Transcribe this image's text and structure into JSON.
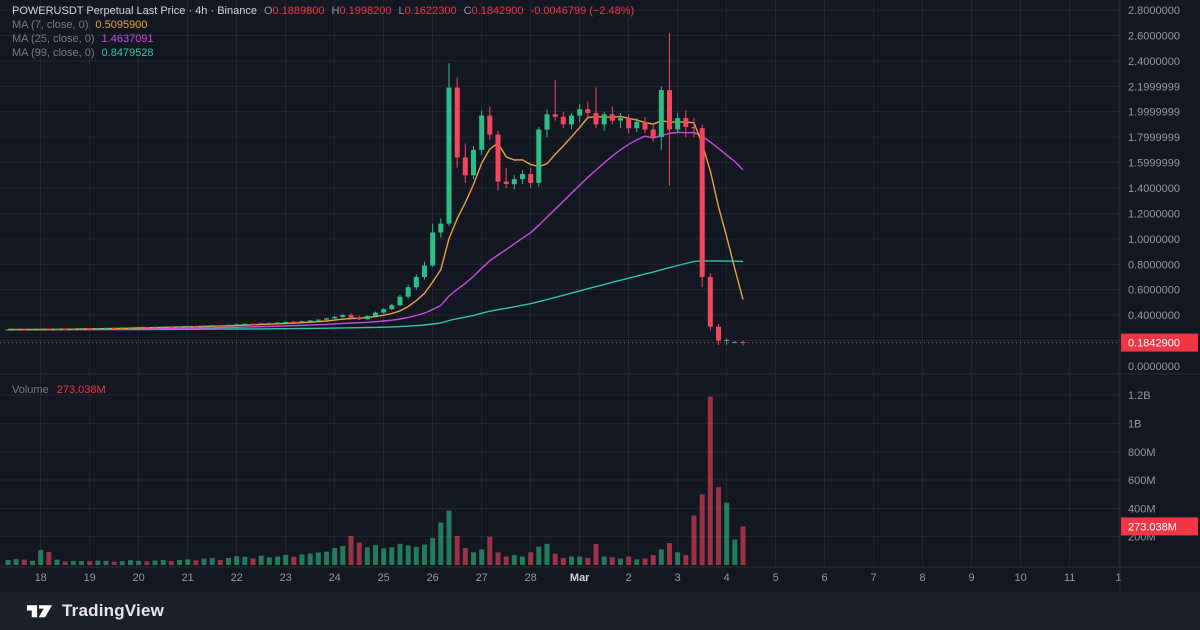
{
  "header": {
    "title": "POWERUSDT Perpetual Last Price · 4h · Binance",
    "ohlc": [
      {
        "k": "O",
        "v": "0.1889800"
      },
      {
        "k": "H",
        "v": "0.1998200"
      },
      {
        "k": "L",
        "v": "0.1622300"
      },
      {
        "k": "C",
        "v": "0.1842900"
      }
    ],
    "change": "-0.0046799 (−2.48%)"
  },
  "volume_legend": {
    "label": "Volume",
    "value": "273.038M"
  },
  "footer": {
    "brand": "TradingView"
  },
  "colors": {
    "background": "#131722",
    "grid": "rgba(255,255,255,0.06)",
    "divider": "#2a2e39",
    "axis_text": "#9598a1",
    "title_text": "#d1d4dc",
    "green": "#2ebd85",
    "red": "#f23645",
    "candle_red": "#f6465d",
    "ma7": "#e8a33d",
    "ma25": "#cb4be0",
    "ma99": "#2ec5a8",
    "badge_text": "#ffffff",
    "footer_bg": "#1c202b"
  },
  "chart_data": {
    "type": "candlestick",
    "symbol": "POWERUSDT Perpetual",
    "interval": "4h",
    "exchange": "Binance",
    "legend_ohlc": {
      "open": 0.18898,
      "high": 0.19982,
      "low": 0.16223,
      "close": 0.18429,
      "change": -0.0046799,
      "change_pct": -2.48
    },
    "ma_legend": [
      {
        "label": "MA (7, close, 0)",
        "value": "0.5095900",
        "color": "#e8a33d"
      },
      {
        "label": "MA (25, close, 0)",
        "value": "1.4637091",
        "color": "#cb4be0"
      },
      {
        "label": "MA (99, close, 0)",
        "value": "0.8479528",
        "color": "#2ec5a8"
      }
    ],
    "ma_periods": [
      7,
      25,
      99
    ],
    "price_axis": {
      "min": 0,
      "max": 2.8,
      "labels": [
        {
          "t": "2.8000000",
          "p": 2.8
        },
        {
          "t": "2.6000000",
          "p": 2.6
        },
        {
          "t": "2.4000000",
          "p": 2.4
        },
        {
          "t": "2.1999999",
          "p": 2.2
        },
        {
          "t": "1.9999999",
          "p": 2.0
        },
        {
          "t": "1.7999999",
          "p": 1.8
        },
        {
          "t": "1.5999999",
          "p": 1.6
        },
        {
          "t": "1.4000000",
          "p": 1.4
        },
        {
          "t": "1.2000000",
          "p": 1.2
        },
        {
          "t": "1.0000000",
          "p": 1.0
        },
        {
          "t": "0.8000000",
          "p": 0.8
        },
        {
          "t": "0.6000000",
          "p": 0.6
        },
        {
          "t": "0.4000000",
          "p": 0.4
        },
        {
          "t": "0.0000000",
          "p": 0.0
        }
      ]
    },
    "volume_axis": {
      "labels": [
        {
          "t": "1.2B",
          "v": 1200
        },
        {
          "t": "1B",
          "v": 1000
        },
        {
          "t": "800M",
          "v": 800
        },
        {
          "t": "600M",
          "v": 600
        },
        {
          "t": "400M",
          "v": 400
        },
        {
          "t": "200M",
          "v": 200
        }
      ]
    },
    "time_axis": {
      "labels": [
        {
          "l": "18",
          "i": 4
        },
        {
          "l": "19",
          "i": 10
        },
        {
          "l": "20",
          "i": 16
        },
        {
          "l": "21",
          "i": 22
        },
        {
          "l": "22",
          "i": 28
        },
        {
          "l": "23",
          "i": 34
        },
        {
          "l": "24",
          "i": 40
        },
        {
          "l": "25",
          "i": 46
        },
        {
          "l": "26",
          "i": 52
        },
        {
          "l": "27",
          "i": 58
        },
        {
          "l": "28",
          "i": 64
        },
        {
          "l": "Mar",
          "i": 70,
          "s": true
        },
        {
          "l": "2",
          "i": 76
        },
        {
          "l": "3",
          "i": 82
        },
        {
          "l": "4",
          "i": 88
        },
        {
          "l": "5",
          "i": 94
        },
        {
          "l": "6",
          "i": 100
        },
        {
          "l": "7",
          "i": 106
        },
        {
          "l": "8",
          "i": 112
        },
        {
          "l": "9",
          "i": 118
        },
        {
          "l": "10",
          "i": 124
        },
        {
          "l": "11",
          "i": 130
        },
        {
          "l": "1",
          "i": 136
        }
      ]
    },
    "last_price": {
      "value": 0.18429,
      "label": "0.1842900"
    },
    "last_volume": {
      "value": 273.038,
      "label": "273.038M"
    },
    "candles_format": [
      "open",
      "high",
      "low",
      "close",
      "volume_millions"
    ],
    "candles": [
      [
        0.284,
        0.289,
        0.281,
        0.286,
        35
      ],
      [
        0.286,
        0.291,
        0.283,
        0.288,
        42
      ],
      [
        0.288,
        0.29,
        0.282,
        0.284,
        38
      ],
      [
        0.284,
        0.288,
        0.28,
        0.287,
        30
      ],
      [
        0.287,
        0.295,
        0.285,
        0.292,
        106
      ],
      [
        0.292,
        0.296,
        0.286,
        0.288,
        92
      ],
      [
        0.288,
        0.293,
        0.285,
        0.291,
        38
      ],
      [
        0.291,
        0.294,
        0.287,
        0.289,
        25
      ],
      [
        0.289,
        0.295,
        0.288,
        0.293,
        30
      ],
      [
        0.293,
        0.298,
        0.29,
        0.295,
        28
      ],
      [
        0.295,
        0.299,
        0.291,
        0.293,
        26
      ],
      [
        0.293,
        0.3,
        0.292,
        0.297,
        31
      ],
      [
        0.297,
        0.302,
        0.294,
        0.299,
        29
      ],
      [
        0.299,
        0.303,
        0.295,
        0.297,
        24
      ],
      [
        0.297,
        0.304,
        0.296,
        0.301,
        27
      ],
      [
        0.301,
        0.306,
        0.298,
        0.303,
        33
      ],
      [
        0.303,
        0.308,
        0.299,
        0.305,
        30
      ],
      [
        0.305,
        0.309,
        0.301,
        0.303,
        26
      ],
      [
        0.303,
        0.31,
        0.302,
        0.307,
        32
      ],
      [
        0.307,
        0.312,
        0.304,
        0.309,
        35
      ],
      [
        0.309,
        0.313,
        0.305,
        0.307,
        28
      ],
      [
        0.307,
        0.314,
        0.306,
        0.311,
        36
      ],
      [
        0.311,
        0.317,
        0.308,
        0.314,
        40
      ],
      [
        0.314,
        0.319,
        0.31,
        0.312,
        33
      ],
      [
        0.312,
        0.32,
        0.311,
        0.317,
        45
      ],
      [
        0.317,
        0.323,
        0.313,
        0.32,
        48
      ],
      [
        0.32,
        0.325,
        0.316,
        0.318,
        36
      ],
      [
        0.318,
        0.326,
        0.317,
        0.323,
        50
      ],
      [
        0.323,
        0.331,
        0.32,
        0.328,
        62
      ],
      [
        0.328,
        0.334,
        0.324,
        0.331,
        58
      ],
      [
        0.331,
        0.336,
        0.326,
        0.329,
        47
      ],
      [
        0.329,
        0.338,
        0.328,
        0.335,
        66
      ],
      [
        0.335,
        0.341,
        0.33,
        0.337,
        54
      ],
      [
        0.337,
        0.344,
        0.333,
        0.341,
        60
      ],
      [
        0.341,
        0.35,
        0.338,
        0.347,
        72
      ],
      [
        0.347,
        0.355,
        0.342,
        0.344,
        58
      ],
      [
        0.344,
        0.356,
        0.343,
        0.352,
        75
      ],
      [
        0.352,
        0.362,
        0.348,
        0.358,
        82
      ],
      [
        0.358,
        0.368,
        0.353,
        0.364,
        88
      ],
      [
        0.364,
        0.378,
        0.36,
        0.374,
        95
      ],
      [
        0.374,
        0.392,
        0.37,
        0.386,
        120
      ],
      [
        0.386,
        0.408,
        0.38,
        0.401,
        135
      ],
      [
        0.401,
        0.415,
        0.372,
        0.381,
        205
      ],
      [
        0.381,
        0.396,
        0.36,
        0.368,
        160
      ],
      [
        0.368,
        0.399,
        0.364,
        0.393,
        125
      ],
      [
        0.393,
        0.428,
        0.388,
        0.42,
        140
      ],
      [
        0.42,
        0.455,
        0.41,
        0.447,
        118
      ],
      [
        0.447,
        0.49,
        0.438,
        0.478,
        125
      ],
      [
        0.478,
        0.56,
        0.47,
        0.545,
        150
      ],
      [
        0.545,
        0.64,
        0.53,
        0.62,
        138
      ],
      [
        0.62,
        0.72,
        0.6,
        0.7,
        128
      ],
      [
        0.7,
        0.82,
        0.68,
        0.79,
        145
      ],
      [
        0.79,
        1.12,
        0.78,
        1.05,
        190
      ],
      [
        1.05,
        1.16,
        1.01,
        1.12,
        300
      ],
      [
        1.12,
        2.38,
        1.1,
        2.19,
        385
      ],
      [
        2.19,
        2.27,
        1.56,
        1.64,
        205
      ],
      [
        1.64,
        1.75,
        1.44,
        1.5,
        120
      ],
      [
        1.5,
        1.73,
        1.47,
        1.7,
        90
      ],
      [
        1.7,
        2.01,
        1.66,
        1.97,
        110
      ],
      [
        1.97,
        2.04,
        1.78,
        1.82,
        200
      ],
      [
        1.82,
        1.85,
        1.38,
        1.45,
        90
      ],
      [
        1.45,
        1.56,
        1.4,
        1.43,
        60
      ],
      [
        1.43,
        1.5,
        1.39,
        1.47,
        70
      ],
      [
        1.47,
        1.54,
        1.43,
        1.51,
        60
      ],
      [
        1.51,
        1.56,
        1.4,
        1.44,
        90
      ],
      [
        1.44,
        1.88,
        1.41,
        1.86,
        130
      ],
      [
        1.86,
        2.02,
        1.8,
        1.98,
        150
      ],
      [
        1.98,
        2.25,
        1.93,
        1.96,
        80
      ],
      [
        1.96,
        2.0,
        1.87,
        1.9,
        50
      ],
      [
        1.9,
        1.99,
        1.86,
        1.97,
        60
      ],
      [
        1.97,
        2.06,
        1.92,
        2.02,
        60
      ],
      [
        2.02,
        2.08,
        1.95,
        1.99,
        50
      ],
      [
        1.99,
        2.19,
        1.87,
        1.9,
        148
      ],
      [
        1.9,
        2.0,
        1.85,
        1.98,
        60
      ],
      [
        1.98,
        2.04,
        1.9,
        1.93,
        55
      ],
      [
        1.93,
        1.99,
        1.87,
        1.95,
        45
      ],
      [
        1.95,
        1.98,
        1.83,
        1.87,
        60
      ],
      [
        1.87,
        1.95,
        1.84,
        1.92,
        40
      ],
      [
        1.92,
        1.96,
        1.83,
        1.86,
        45
      ],
      [
        1.86,
        1.9,
        1.76,
        1.8,
        70
      ],
      [
        1.8,
        2.2,
        1.7,
        2.17,
        110
      ],
      [
        2.17,
        2.62,
        1.42,
        1.86,
        155
      ],
      [
        1.86,
        1.99,
        1.83,
        1.95,
        90
      ],
      [
        1.95,
        2.01,
        1.8,
        1.88,
        70
      ],
      [
        1.88,
        1.95,
        1.8,
        1.87,
        350
      ],
      [
        1.87,
        1.9,
        0.62,
        0.7,
        500
      ],
      [
        0.7,
        0.73,
        0.28,
        0.31,
        1190
      ],
      [
        0.31,
        0.33,
        0.165,
        0.2,
        550
      ],
      [
        0.2,
        0.215,
        0.168,
        0.205,
        440
      ],
      [
        0.185,
        0.195,
        0.178,
        0.189,
        180
      ],
      [
        0.18898,
        0.19982,
        0.16223,
        0.18429,
        273
      ]
    ]
  }
}
